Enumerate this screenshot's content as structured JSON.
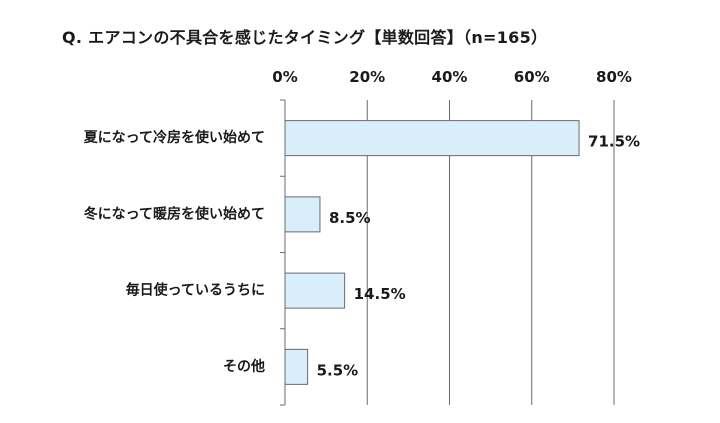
{
  "chart_data": {
    "type": "bar",
    "orientation": "horizontal",
    "title": "Q.  エアコンの不具合を感じたタイミング【単数回答】（n=165）",
    "categories": [
      "夏になって冷房を使い始めて",
      "冬になって暖房を使い始めて",
      "毎日使っているうちに",
      "その他"
    ],
    "values": [
      71.5,
      8.5,
      14.5,
      5.5
    ],
    "value_labels": [
      "71.5%",
      "8.5%",
      "14.5%",
      "5.5%"
    ],
    "x_ticks": [
      0,
      20,
      40,
      60,
      80
    ],
    "x_tick_labels": [
      "0%",
      "20%",
      "40%",
      "60%",
      "80%"
    ],
    "xlim": [
      0,
      80
    ],
    "xlabel": "",
    "ylabel": "",
    "grid": true,
    "axis_position": "top",
    "legend": "none",
    "colors": {
      "bar_fill": "#d9eefb",
      "bar_stroke": "#6b6b6b",
      "grid": "#6b6b6b",
      "text": "#1a1a1a"
    }
  }
}
